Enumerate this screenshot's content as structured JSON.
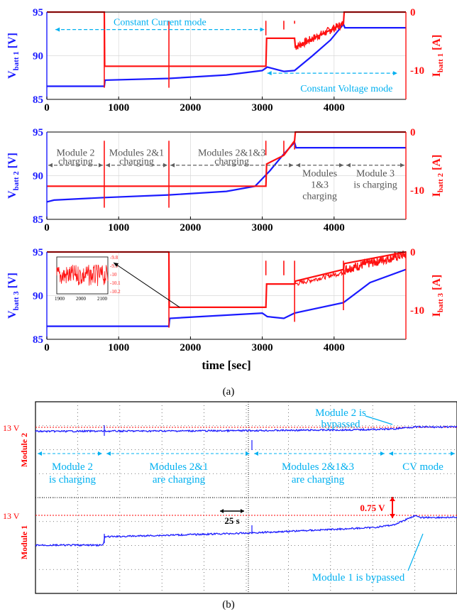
{
  "colors": {
    "voltage": "#1a1aff",
    "current": "#ff1010",
    "annotation": "#00b0f0",
    "arrow_gray": "#606060",
    "threshold": "#ff0000",
    "axis_label_blue": "#1a1aff",
    "axis_label_red": "#ff1010"
  },
  "chart_data": [
    {
      "id": "batt1",
      "type": "line",
      "xlim": [
        0,
        5000
      ],
      "xticks": [
        "0",
        "1000",
        "2000",
        "3000",
        "4000"
      ],
      "ylim_left": [
        85,
        95
      ],
      "yticks_left": [
        "85",
        "90",
        "95"
      ],
      "ylim_right": [
        -15,
        0
      ],
      "yticks_right": [
        "0",
        "-10"
      ],
      "ylabel_left_main": "V",
      "ylabel_left_sub": "batt 1",
      "ylabel_left_unit": "[V]",
      "ylabel_right_main": "I",
      "ylabel_right_sub": "batt 1",
      "ylabel_right_unit": "[A]",
      "voltage": {
        "x": [
          0,
          800,
          810,
          1700,
          2500,
          3000,
          3070,
          3300,
          3450,
          3700,
          3950,
          4130,
          4150,
          5000
        ],
        "y": [
          86.5,
          86.5,
          87.2,
          87.4,
          87.8,
          88.3,
          88.7,
          88.2,
          88.3,
          90.0,
          91.8,
          93.6,
          93.2,
          93.2
        ]
      },
      "current": {
        "x": [
          0,
          800,
          805,
          1700,
          3050,
          3060,
          3450,
          3460,
          4130,
          4140,
          5000
        ],
        "y": [
          0,
          0,
          -9.3,
          -9.3,
          -9.3,
          -4.5,
          -4.5,
          -6.0,
          -2.0,
          0,
          0
        ]
      },
      "annotations": [
        {
          "text": "Constant Current mode",
          "arrow_from": 100,
          "arrow_to": 3050,
          "y": 93.0
        },
        {
          "text": "Constant Voltage mode",
          "arrow_from": 3050,
          "arrow_to": 4900,
          "y": 88.0
        }
      ]
    },
    {
      "id": "batt2",
      "type": "line",
      "xlim": [
        0,
        5000
      ],
      "xticks": [
        "0",
        "1000",
        "2000",
        "3000",
        "4000"
      ],
      "ylim_left": [
        85,
        95
      ],
      "yticks_left": [
        "85",
        "90",
        "95"
      ],
      "ylim_right": [
        -15,
        0
      ],
      "yticks_right": [
        "0",
        "-10"
      ],
      "ylabel_left_main": "V",
      "ylabel_left_sub": "batt 2",
      "ylabel_left_unit": "[V]",
      "ylabel_right_main": "I",
      "ylabel_right_sub": "batt 2",
      "ylabel_right_unit": "[A]",
      "voltage": {
        "x": [
          0,
          100,
          800,
          1700,
          2500,
          2900,
          3100,
          3300,
          3450,
          3470,
          5000
        ],
        "y": [
          87.0,
          87.2,
          87.5,
          87.8,
          88.2,
          88.8,
          90.5,
          92.5,
          93.8,
          93.2,
          93.2
        ]
      },
      "current": {
        "x": [
          0,
          800,
          1700,
          3050,
          3060,
          3300,
          3450,
          3460,
          5000
        ],
        "y": [
          -9.3,
          -9.3,
          -9.3,
          -9.3,
          -5.5,
          -4.0,
          -1.5,
          0,
          0
        ]
      },
      "annotations": [
        {
          "text": "Module 2",
          "text2": "charging",
          "arrow_from": 0,
          "arrow_to": 800,
          "y": 91.2
        },
        {
          "text": "Modules 2&1",
          "text2": "charging",
          "arrow_from": 800,
          "arrow_to": 1700,
          "y": 91.2
        },
        {
          "text": "Modules 2&1&3",
          "text2": "charging",
          "arrow_from": 1700,
          "arrow_to": 3450,
          "y": 91.2
        },
        {
          "text": "Modules",
          "text2": "1&3",
          "text3": "charging",
          "arrow_from": 3450,
          "arrow_to": 4150,
          "y": 91.2
        },
        {
          "text": "Module 3",
          "text2": "is charging",
          "arrow_from": 4150,
          "arrow_to": 5000,
          "y": 91.2
        }
      ]
    },
    {
      "id": "batt3",
      "type": "line",
      "xlim": [
        0,
        5000
      ],
      "xticks": [
        "0",
        "1000",
        "2000",
        "3000",
        "4000"
      ],
      "ylim_left": [
        85,
        95
      ],
      "yticks_left": [
        "85",
        "90",
        "95"
      ],
      "ylim_right": [
        -15,
        0
      ],
      "yticks_right": [
        "0",
        "-10"
      ],
      "ylabel_left_main": "V",
      "ylabel_left_sub": "batt 3",
      "ylabel_left_unit": "[V]",
      "ylabel_right_main": "I",
      "ylabel_right_sub": "batt 3",
      "ylabel_right_unit": "[A]",
      "xlabel": "time [sec]",
      "voltage": {
        "x": [
          0,
          1700,
          1710,
          3000,
          3070,
          3300,
          3450,
          4130,
          4500,
          5000
        ],
        "y": [
          86.5,
          86.5,
          87.4,
          88.0,
          87.6,
          87.4,
          88.0,
          89.2,
          91.5,
          93.0
        ]
      },
      "current": {
        "x": [
          0,
          1700,
          1705,
          3050,
          3060,
          3450,
          3460,
          4130,
          4140,
          5000
        ],
        "y": [
          0,
          0,
          -9.5,
          -9.5,
          -5.5,
          -5.5,
          -5.0,
          -3.0,
          -2.0,
          0
        ]
      },
      "inset": {
        "xlim": [
          1900,
          2100
        ],
        "xticks": [
          "1900",
          "2000",
          "2100"
        ],
        "ylim": [
          -10.2,
          -9.8
        ],
        "yticks": [
          "-9.8",
          "-9.9",
          "-10",
          "-10.1",
          "-10.2"
        ],
        "center": -10.0,
        "amplitude": 0.1
      }
    },
    {
      "id": "oscilloscope",
      "type": "line",
      "panel_label": "(b)",
      "trace_upper_label": "Module 2",
      "trace_lower_label": "Module 1",
      "threshold_upper_label": "13 V",
      "threshold_lower_label": "13 V",
      "time_div_label": "25 s",
      "volt_div_label": "0.75 V",
      "upper_trace": {
        "x": [
          0,
          0.15,
          0.45,
          0.75,
          0.85,
          0.88,
          0.9,
          1.0
        ],
        "y": [
          0.15,
          0.3,
          0.55,
          1.2,
          1.8,
          2.9,
          3.2,
          3.2
        ]
      },
      "lower_trace": {
        "x": [
          0,
          0.16,
          0.165,
          0.5,
          0.8,
          0.85,
          0.9,
          0.91,
          1.0
        ],
        "y": [
          0.0,
          0.0,
          0.9,
          1.3,
          1.9,
          2.2,
          3.2,
          3.0,
          3.0
        ]
      },
      "annotations": [
        {
          "text": "Module 2 is",
          "text2": "bypassed"
        },
        {
          "text": "Module 2",
          "text2": "is charging"
        },
        {
          "text": "Modules 2&1",
          "text2": "are charging"
        },
        {
          "text": "Modules 2&1&3",
          "text2": "are charging"
        },
        {
          "text": "CV mode"
        },
        {
          "text": "Module 1 is bypassed"
        }
      ]
    }
  ],
  "labels": {
    "panel_a": "(a)"
  }
}
